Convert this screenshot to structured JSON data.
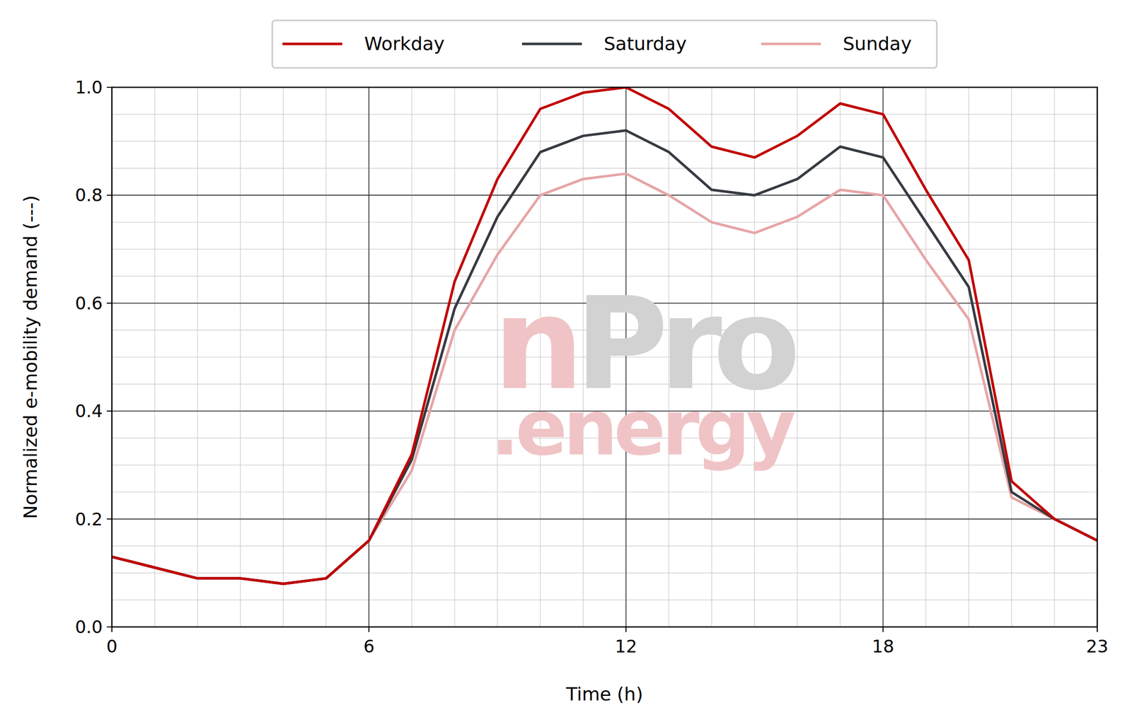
{
  "chart_data": {
    "type": "line",
    "x_label": "Time (h)",
    "y_label": "Normalized e-mobility demand (---)",
    "watermark": [
      "n",
      "Pro",
      ".energy"
    ],
    "x": [
      0,
      1,
      2,
      3,
      4,
      5,
      6,
      7,
      8,
      9,
      10,
      11,
      12,
      13,
      14,
      15,
      16,
      17,
      18,
      19,
      20,
      21,
      22,
      23
    ],
    "series": [
      {
        "name": "Workday",
        "color": "#c00000",
        "values": [
          0.13,
          0.11,
          0.09,
          0.09,
          0.08,
          0.09,
          0.16,
          0.32,
          0.64,
          0.83,
          0.96,
          0.99,
          1.0,
          0.96,
          0.89,
          0.87,
          0.91,
          0.97,
          0.95,
          0.81,
          0.68,
          0.27,
          0.2,
          0.16
        ]
      },
      {
        "name": "Saturday",
        "color": "#363a41",
        "values": [
          0.13,
          0.11,
          0.09,
          0.09,
          0.08,
          0.09,
          0.16,
          0.31,
          0.59,
          0.76,
          0.88,
          0.91,
          0.92,
          0.88,
          0.81,
          0.8,
          0.83,
          0.89,
          0.87,
          0.75,
          0.63,
          0.25,
          0.2,
          0.16
        ]
      },
      {
        "name": "Sunday",
        "color": "#e6a5a6",
        "values": [
          0.13,
          0.11,
          0.09,
          0.09,
          0.08,
          0.09,
          0.16,
          0.29,
          0.55,
          0.69,
          0.8,
          0.83,
          0.84,
          0.8,
          0.75,
          0.73,
          0.76,
          0.81,
          0.8,
          0.68,
          0.57,
          0.24,
          0.2,
          0.16
        ]
      }
    ],
    "xlim": [
      0,
      23
    ],
    "ylim": [
      0,
      1
    ],
    "xticks": [
      0,
      6,
      12,
      18,
      23
    ],
    "yticks": [
      {
        "value": 0,
        "label": "0.0"
      },
      0.2,
      0.4,
      0.6,
      0.8,
      {
        "value": 1,
        "label": "1.0"
      }
    ],
    "grid": true,
    "legend": "top"
  }
}
